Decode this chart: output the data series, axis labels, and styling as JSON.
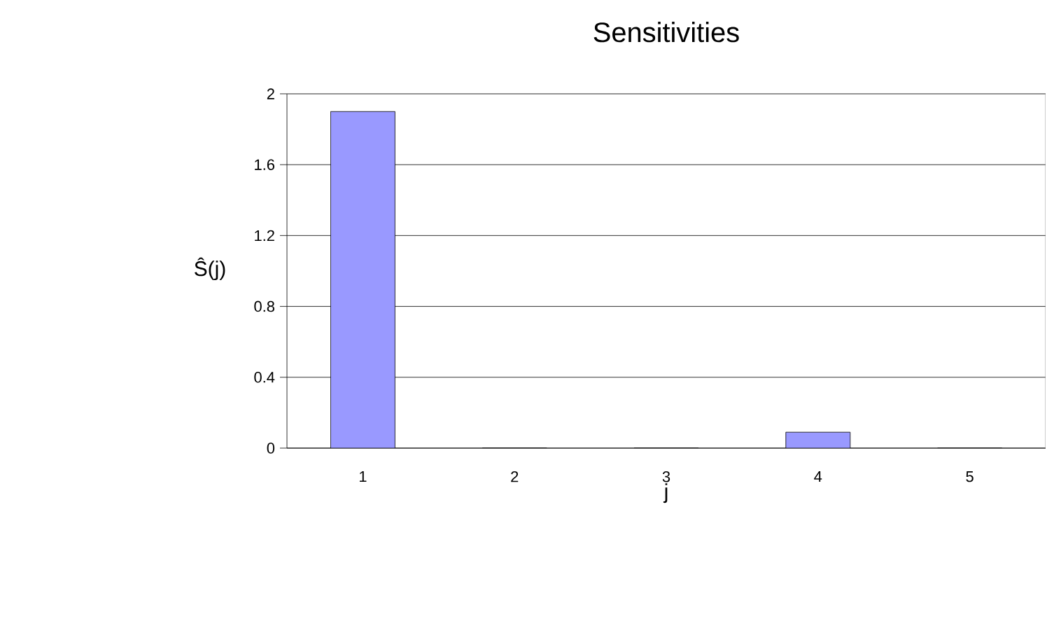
{
  "chart_data": {
    "type": "bar",
    "title": "Sensitivities",
    "xlabel": "j",
    "ylabel": "Ŝ(j)",
    "categories": [
      "1",
      "2",
      "3",
      "4",
      "5"
    ],
    "values": [
      1.9,
      0,
      0,
      0.09,
      0
    ],
    "color": "#9999ff",
    "ylim": [
      0,
      2
    ],
    "yticks": [
      0,
      0.4,
      0.8,
      1.2,
      1.6,
      2
    ],
    "grid": "y"
  }
}
